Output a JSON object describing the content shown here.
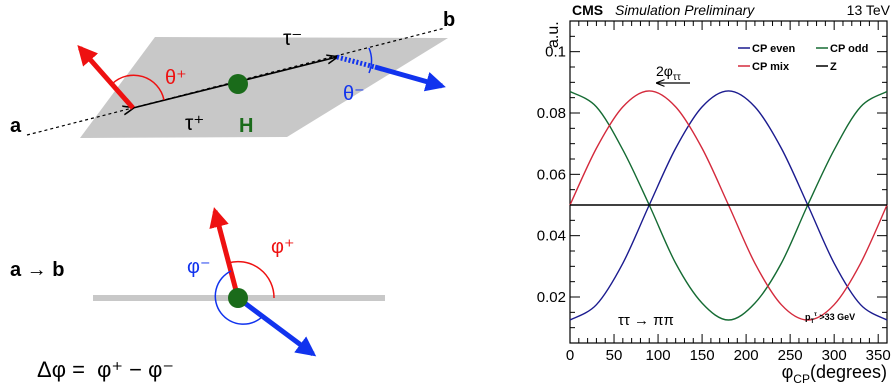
{
  "diagram": {
    "label_a": "a",
    "label_b": "b",
    "tau_minus": "τ⁻",
    "tau_plus": "τ⁺",
    "theta_plus": "θ⁺",
    "theta_minus": "θ⁻",
    "higgs": "H",
    "a_to_b": "a → b",
    "phi_minus": "φ⁻",
    "phi_plus": "φ⁺",
    "delta_phi_formula": "Δφ =  φ⁺ − φ⁻",
    "colors": {
      "plane": "#c8c8c8",
      "tau_plus_arrow": "#ee1111",
      "tau_minus_arrow": "#1133ee",
      "higgs": "#1a6b1a",
      "line": "#000000"
    }
  },
  "chart_data": {
    "type": "line",
    "header_experiment": "CMS",
    "header_status": "Simulation Preliminary",
    "header_energy": "13 TeV",
    "ylabel": "a.u.",
    "xlabel": "φCP(degrees)",
    "xlim": [
      0,
      360
    ],
    "ylim": [
      0.005,
      0.11
    ],
    "x_ticks": [
      0,
      50,
      100,
      150,
      200,
      250,
      300,
      350
    ],
    "y_ticks": [
      0.02,
      0.04,
      0.06,
      0.08,
      0.1
    ],
    "y_tick_labels": [
      "0.02",
      "0.04",
      "0.06",
      "0.08",
      "0.1"
    ],
    "legend_position": "top-right",
    "annotation_shift": "2φττ",
    "annotation_channel": "ττ → ππ",
    "annotation_cut": "pT > 33 GeV",
    "series": [
      {
        "name": "CP even",
        "color": "#1b1b8f",
        "x": [
          0,
          30,
          60,
          90,
          120,
          150,
          180,
          210,
          240,
          270,
          300,
          330,
          360
        ],
        "values": [
          0.0125,
          0.0175,
          0.031,
          0.05,
          0.0685,
          0.082,
          0.0872,
          0.082,
          0.0685,
          0.05,
          0.031,
          0.0175,
          0.0125
        ]
      },
      {
        "name": "CP odd",
        "color": "#156b33",
        "x": [
          0,
          30,
          60,
          90,
          120,
          150,
          180,
          210,
          240,
          270,
          300,
          330,
          360
        ],
        "values": [
          0.087,
          0.082,
          0.068,
          0.05,
          0.031,
          0.018,
          0.0125,
          0.018,
          0.031,
          0.05,
          0.068,
          0.082,
          0.087
        ]
      },
      {
        "name": "CP mix",
        "color": "#d42a3c",
        "x": [
          0,
          30,
          60,
          90,
          120,
          150,
          180,
          210,
          240,
          270,
          300,
          330,
          360
        ],
        "values": [
          0.05,
          0.0685,
          0.082,
          0.0872,
          0.082,
          0.0685,
          0.05,
          0.031,
          0.0175,
          0.0125,
          0.0175,
          0.031,
          0.05
        ]
      },
      {
        "name": "Z",
        "color": "#000000",
        "x": [
          0,
          360
        ],
        "values": [
          0.05,
          0.05
        ]
      }
    ]
  }
}
